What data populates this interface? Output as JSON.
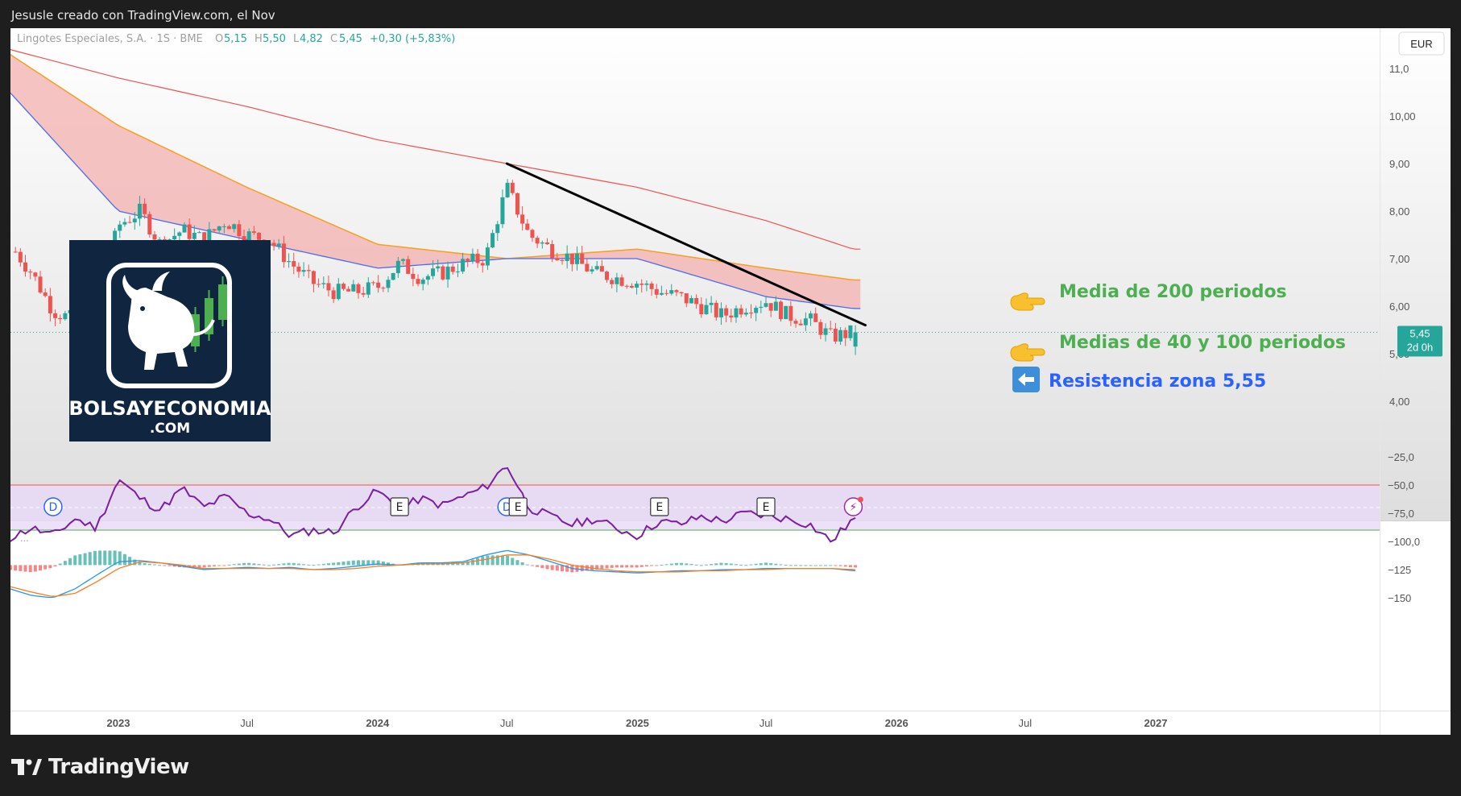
{
  "header": {
    "caption": "Jesusle creado con TradingView.com, el Nov"
  },
  "instrument": {
    "name": "Lingotes Especiales, S.A. · 1S · BME",
    "open_label": "O",
    "open": "5,15",
    "high_label": "H",
    "high": "5,50",
    "low_label": "L",
    "low": "4,82",
    "close_label": "C",
    "close": "5,45",
    "change": "+0,30 (+5,83%)",
    "currency": "EUR"
  },
  "price_badge": {
    "price": "5,45",
    "countdown": "2d 0h"
  },
  "annotations": {
    "ma200": "Media de 200 periodos",
    "ma40_100": "Medias de 40 y 100 periodos",
    "resistance": "Resistencia zona 5,55",
    "ma200_icon": "pointing-hand-icon",
    "ma40_100_icon": "pointing-hand-icon",
    "resistance_icon": "left-arrow-icon"
  },
  "logo": {
    "line1": "BOLSAYECONOMIA",
    "line2": ".COM",
    "icon": "bull-candles-icon"
  },
  "event_markers": [
    {
      "label": "D",
      "type": "dividend",
      "date": "2022-10"
    },
    {
      "label": "E",
      "type": "earnings",
      "date": "2024-02"
    },
    {
      "label": "D",
      "type": "dividend",
      "date": "2024-07"
    },
    {
      "label": "E",
      "type": "earnings",
      "date": "2024-07"
    },
    {
      "label": "E",
      "type": "earnings",
      "date": "2025-02"
    },
    {
      "label": "E",
      "type": "earnings",
      "date": "2025-07"
    },
    {
      "label": "⚡",
      "type": "alert",
      "date": "2025-11"
    }
  ],
  "footer": {
    "brand": "TradingView",
    "icon": "tradingview-logo-icon"
  },
  "colors": {
    "up": "#26a69a",
    "down": "#ef5350",
    "ma40": "#4a6cf0",
    "ma100": "#f5a020",
    "ma200": "#ef5350",
    "band_fill": "#f4b0b0",
    "trendline": "#000000",
    "annot_green": "#4caf50",
    "annot_blue": "#2962ff",
    "oscillator": "#7b1fa2",
    "osc_band": "#e8d8f8"
  },
  "chart_data": [
    {
      "type": "candlestick",
      "title": "",
      "xlabel": "",
      "ylabel": "",
      "ylim": [
        3.5,
        11.5
      ],
      "y_ticks": [
        "11,0",
        "10,00",
        "9,00",
        "8,00",
        "7,00",
        "6,00",
        "5,00",
        "4,00"
      ],
      "y_tick_values": [
        11,
        10,
        9,
        8,
        7,
        6,
        5,
        4
      ],
      "x_ticks": [
        "2023",
        "Jul",
        "2024",
        "Jul",
        "2025",
        "Jul",
        "2026",
        "Jul",
        "2027"
      ],
      "x_tick_dates": [
        "2023-01",
        "2023-07",
        "2024-01",
        "2024-07",
        "2025-01",
        "2025-07",
        "2026-01",
        "2026-07",
        "2027-01"
      ],
      "last_price": 5.45,
      "waypoints": {
        "dates": [
          "2022-08",
          "2022-09",
          "2022-10",
          "2022-11",
          "2022-12",
          "2023-01",
          "2023-02",
          "2023-03",
          "2023-04",
          "2023-05",
          "2023-06",
          "2023-07",
          "2023-08",
          "2023-09",
          "2023-10",
          "2023-11",
          "2023-12",
          "2024-01",
          "2024-02",
          "2024-03",
          "2024-04",
          "2024-05",
          "2024-06",
          "2024-07",
          "2024-08",
          "2024-09",
          "2024-10",
          "2024-11",
          "2024-12",
          "2025-01",
          "2025-02",
          "2025-03",
          "2025-04",
          "2025-05",
          "2025-06",
          "2025-07",
          "2025-08",
          "2025-09",
          "2025-10",
          "2025-11"
        ],
        "close": [
          7.3,
          6.7,
          5.9,
          5.7,
          6.0,
          7.7,
          8.0,
          7.3,
          7.6,
          7.4,
          7.8,
          7.5,
          7.4,
          6.9,
          6.5,
          6.3,
          6.3,
          6.4,
          6.9,
          6.6,
          6.7,
          6.9,
          7.0,
          8.5,
          7.5,
          7.2,
          7.0,
          6.7,
          6.6,
          6.5,
          6.3,
          6.2,
          6.0,
          5.8,
          6.0,
          6.1,
          5.8,
          5.7,
          5.35,
          5.45
        ]
      },
      "series": [
        {
          "name": "",
          "kind": "ma40",
          "dates": [
            "2022-08",
            "2023-01",
            "2023-07",
            "2024-01",
            "2024-07",
            "2025-01",
            "2025-07",
            "2025-11"
          ],
          "values": [
            10.5,
            8.0,
            7.4,
            6.8,
            7.0,
            7.0,
            6.2,
            5.95
          ]
        },
        {
          "name": "",
          "kind": "ma100",
          "dates": [
            "2022-08",
            "2023-01",
            "2023-07",
            "2024-01",
            "2024-07",
            "2025-01",
            "2025-07",
            "2025-11"
          ],
          "values": [
            11.3,
            9.8,
            8.5,
            7.3,
            7.0,
            7.2,
            6.8,
            6.55
          ]
        },
        {
          "name": "",
          "kind": "ma200",
          "dates": [
            "2022-08",
            "2023-01",
            "2023-07",
            "2024-01",
            "2024-07",
            "2025-01",
            "2025-07",
            "2025-11"
          ],
          "values": [
            11.4,
            10.8,
            10.2,
            9.5,
            9.0,
            8.5,
            7.8,
            7.2
          ]
        }
      ],
      "trendline": {
        "start": {
          "date": "2024-07",
          "price": 9.0
        },
        "end": {
          "date": "2025-11",
          "price": 5.6
        }
      }
    },
    {
      "type": "line",
      "title": "",
      "xlabel": "",
      "ylabel": "",
      "ylim": [
        -155,
        -20
      ],
      "y_ticks": [
        "-25,0",
        "-50,0",
        "-75,0",
        "-100,0",
        "-125",
        "-150"
      ],
      "y_tick_values": [
        -25,
        -50,
        -75,
        -100,
        -125,
        -150
      ],
      "band": {
        "upper": -50,
        "lower": -90,
        "middle": -70
      },
      "oscillator": {
        "dates": [
          "2022-08",
          "2022-09",
          "2022-10",
          "2022-11",
          "2022-12",
          "2023-01",
          "2023-02",
          "2023-03",
          "2023-04",
          "2023-05",
          "2023-06",
          "2023-07",
          "2023-08",
          "2023-09",
          "2023-10",
          "2023-11",
          "2023-12",
          "2024-01",
          "2024-02",
          "2024-03",
          "2024-04",
          "2024-05",
          "2024-06",
          "2024-07",
          "2024-08",
          "2024-09",
          "2024-10",
          "2024-11",
          "2024-12",
          "2025-01",
          "2025-02",
          "2025-03",
          "2025-04",
          "2025-05",
          "2025-06",
          "2025-07",
          "2025-08",
          "2025-09",
          "2025-10",
          "2025-11"
        ],
        "values": [
          -97,
          -88,
          -95,
          -80,
          -88,
          -45,
          -62,
          -72,
          -53,
          -70,
          -60,
          -75,
          -80,
          -95,
          -90,
          -92,
          -70,
          -55,
          -72,
          -62,
          -68,
          -60,
          -52,
          -32,
          -70,
          -78,
          -85,
          -80,
          -88,
          -95,
          -82,
          -85,
          -78,
          -82,
          -75,
          -77,
          -80,
          -85,
          -100,
          -80
        ]
      },
      "lower_series": [
        {
          "name": "",
          "kind": "fast",
          "values": [
            -142,
            -148,
            -150,
            -142,
            -130,
            -118,
            -117,
            -119,
            -122,
            -125,
            -124,
            -123,
            -124,
            -123,
            -125,
            -124,
            -122,
            -120,
            -121,
            -119,
            -119,
            -118,
            -112,
            -108,
            -112,
            -118,
            -124,
            -126,
            -127,
            -128,
            -127,
            -126,
            -126,
            -125,
            -125,
            -124,
            -124,
            -124,
            -124,
            -126
          ]
        },
        {
          "name": "",
          "kind": "slow",
          "values": [
            -140,
            -145,
            -149,
            -146,
            -136,
            -124,
            -118,
            -119,
            -121,
            -124,
            -124,
            -124,
            -124,
            -124,
            -125,
            -125,
            -124,
            -122,
            -121,
            -120,
            -120,
            -119,
            -116,
            -112,
            -112,
            -116,
            -121,
            -124,
            -126,
            -127,
            -127,
            -127,
            -126,
            -126,
            -125,
            -125,
            -124,
            -124,
            -124,
            -125
          ]
        }
      ]
    }
  ]
}
